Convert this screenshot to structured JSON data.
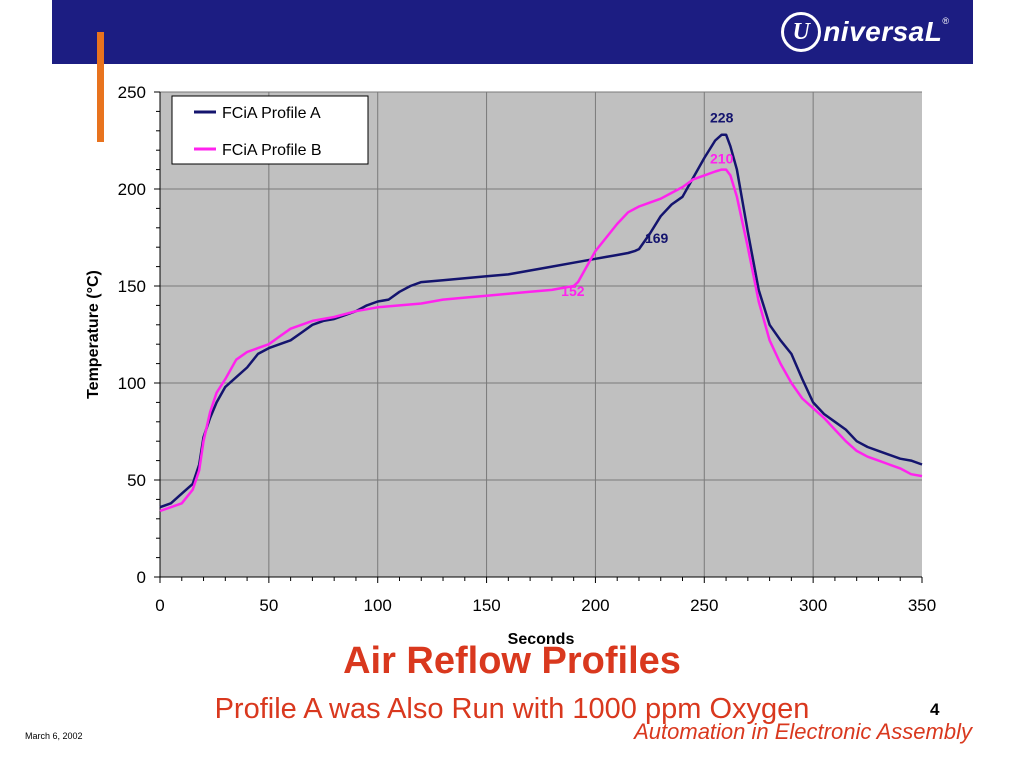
{
  "header": {
    "logo_mark": "U",
    "logo_text": "niversaL",
    "logo_reg": "®"
  },
  "slide": {
    "title": "Air Reflow Profiles",
    "subtitle": "Profile A was Also Run with 1000 ppm Oxygen",
    "page_number": "4",
    "footer_tagline": "Automation in Electronic Assembly",
    "date": "March 6, 2002"
  },
  "colors": {
    "header_bg": "#1c1d82",
    "accent": "#e8731e",
    "title_red": "#d9381e",
    "plot_bg": "#c0c0c0",
    "profile_a": "#14146e",
    "profile_b": "#ff22ee"
  },
  "chart_data": {
    "type": "line",
    "xlabel": "Seconds",
    "ylabel": "Temperature (°C)",
    "xlim": [
      0,
      350
    ],
    "ylim": [
      0,
      250
    ],
    "xticks": [
      0,
      50,
      100,
      150,
      200,
      250,
      300,
      350
    ],
    "yticks": [
      0,
      50,
      100,
      150,
      200,
      250
    ],
    "grid": true,
    "legend": "top-left",
    "series": [
      {
        "name": "FCiA Profile A",
        "color": "#14146e",
        "points": [
          [
            0,
            36
          ],
          [
            5,
            38
          ],
          [
            10,
            43
          ],
          [
            15,
            48
          ],
          [
            18,
            58
          ],
          [
            20,
            72
          ],
          [
            23,
            82
          ],
          [
            26,
            90
          ],
          [
            30,
            98
          ],
          [
            35,
            103
          ],
          [
            40,
            108
          ],
          [
            45,
            115
          ],
          [
            50,
            118
          ],
          [
            55,
            120
          ],
          [
            60,
            122
          ],
          [
            65,
            126
          ],
          [
            70,
            130
          ],
          [
            75,
            132
          ],
          [
            80,
            133
          ],
          [
            85,
            135
          ],
          [
            90,
            137
          ],
          [
            95,
            140
          ],
          [
            100,
            142
          ],
          [
            105,
            143
          ],
          [
            110,
            147
          ],
          [
            115,
            150
          ],
          [
            120,
            152
          ],
          [
            130,
            153
          ],
          [
            140,
            154
          ],
          [
            150,
            155
          ],
          [
            160,
            156
          ],
          [
            170,
            158
          ],
          [
            180,
            160
          ],
          [
            190,
            162
          ],
          [
            200,
            164
          ],
          [
            205,
            165
          ],
          [
            210,
            166
          ],
          [
            215,
            167
          ],
          [
            218,
            168
          ],
          [
            220,
            169
          ],
          [
            225,
            177
          ],
          [
            230,
            186
          ],
          [
            235,
            192
          ],
          [
            240,
            196
          ],
          [
            245,
            206
          ],
          [
            250,
            216
          ],
          [
            255,
            225
          ],
          [
            258,
            228
          ],
          [
            260,
            228
          ],
          [
            262,
            222
          ],
          [
            265,
            210
          ],
          [
            270,
            178
          ],
          [
            275,
            148
          ],
          [
            280,
            130
          ],
          [
            285,
            122
          ],
          [
            290,
            115
          ],
          [
            295,
            102
          ],
          [
            300,
            90
          ],
          [
            305,
            84
          ],
          [
            310,
            80
          ],
          [
            315,
            76
          ],
          [
            320,
            70
          ],
          [
            325,
            67
          ],
          [
            330,
            65
          ],
          [
            335,
            63
          ],
          [
            340,
            61
          ],
          [
            345,
            60
          ],
          [
            350,
            58
          ]
        ]
      },
      {
        "name": "FCiA Profile B",
        "color": "#ff22ee",
        "points": [
          [
            0,
            34
          ],
          [
            5,
            36
          ],
          [
            10,
            38
          ],
          [
            15,
            45
          ],
          [
            18,
            55
          ],
          [
            20,
            70
          ],
          [
            23,
            85
          ],
          [
            26,
            95
          ],
          [
            30,
            102
          ],
          [
            35,
            112
          ],
          [
            40,
            116
          ],
          [
            45,
            118
          ],
          [
            50,
            120
          ],
          [
            55,
            124
          ],
          [
            60,
            128
          ],
          [
            65,
            130
          ],
          [
            70,
            132
          ],
          [
            80,
            134
          ],
          [
            90,
            137
          ],
          [
            100,
            139
          ],
          [
            110,
            140
          ],
          [
            120,
            141
          ],
          [
            130,
            143
          ],
          [
            140,
            144
          ],
          [
            150,
            145
          ],
          [
            160,
            146
          ],
          [
            170,
            147
          ],
          [
            180,
            148
          ],
          [
            185,
            149
          ],
          [
            190,
            150
          ],
          [
            192,
            152
          ],
          [
            195,
            158
          ],
          [
            200,
            168
          ],
          [
            205,
            175
          ],
          [
            210,
            182
          ],
          [
            215,
            188
          ],
          [
            220,
            191
          ],
          [
            225,
            193
          ],
          [
            230,
            195
          ],
          [
            235,
            198
          ],
          [
            240,
            201
          ],
          [
            245,
            205
          ],
          [
            250,
            207
          ],
          [
            255,
            209
          ],
          [
            258,
            210
          ],
          [
            260,
            210
          ],
          [
            262,
            207
          ],
          [
            265,
            196
          ],
          [
            270,
            170
          ],
          [
            275,
            142
          ],
          [
            280,
            122
          ],
          [
            285,
            110
          ],
          [
            290,
            100
          ],
          [
            295,
            92
          ],
          [
            300,
            87
          ],
          [
            305,
            82
          ],
          [
            310,
            76
          ],
          [
            315,
            70
          ],
          [
            320,
            65
          ],
          [
            325,
            62
          ],
          [
            330,
            60
          ],
          [
            335,
            58
          ],
          [
            340,
            56
          ],
          [
            345,
            53
          ],
          [
            350,
            52
          ]
        ]
      }
    ],
    "annotations": [
      {
        "x": 258,
        "y": 228,
        "text": "228",
        "series": 0
      },
      {
        "x": 258,
        "y": 210,
        "text": "210",
        "series": 1
      },
      {
        "x": 220,
        "y": 169,
        "text": "169",
        "series": 0
      },
      {
        "x": 195,
        "y": 152,
        "text": "152",
        "series": 1
      }
    ]
  }
}
